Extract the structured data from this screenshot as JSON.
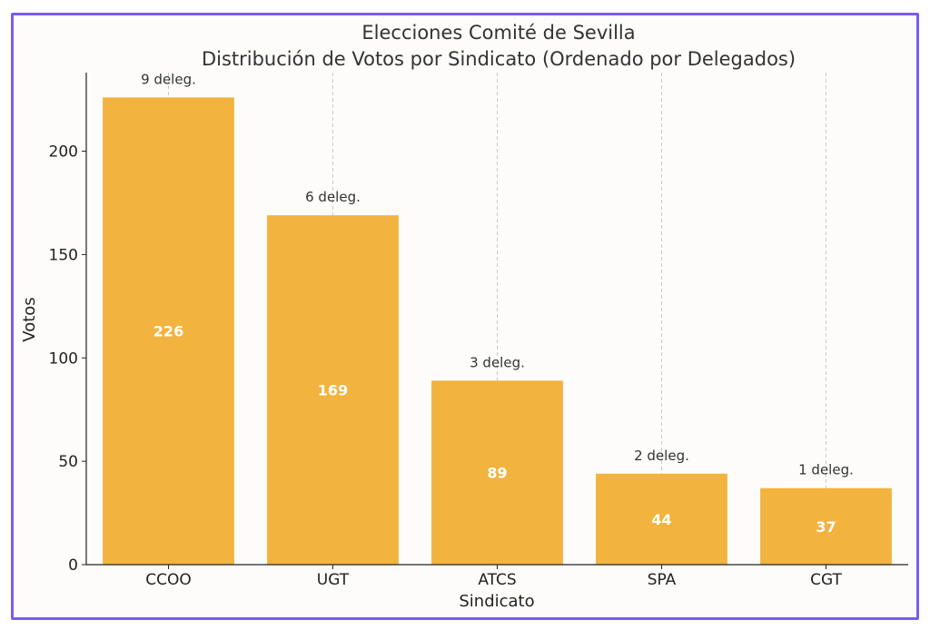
{
  "chart_data": {
    "type": "bar",
    "title": "Elecciones Comité de Sevilla",
    "subtitle": "Distribución de Votos por Sindicato (Ordenado por Delegados)",
    "xlabel": "Sindicato",
    "ylabel": "Votos",
    "categories": [
      "CCOO",
      "UGT",
      "ATCS",
      "SPA",
      "CGT"
    ],
    "values": [
      226,
      169,
      89,
      44,
      37
    ],
    "value_labels": [
      "226",
      "169",
      "89",
      "44",
      "37"
    ],
    "annotations": [
      "9 deleg.",
      "6 deleg.",
      "3 deleg.",
      "2 deleg.",
      "1 deleg."
    ],
    "ylim": [
      0,
      238
    ],
    "yticks": [
      0,
      50,
      100,
      150,
      200
    ],
    "grid": "vertical dashed",
    "colors": {
      "bar": "#f2b33f",
      "value_label": "#ffffff",
      "annotation": "#333333",
      "axis": "#222222",
      "grid": "#c8c8c8",
      "frame": "#7b5cf0"
    }
  }
}
